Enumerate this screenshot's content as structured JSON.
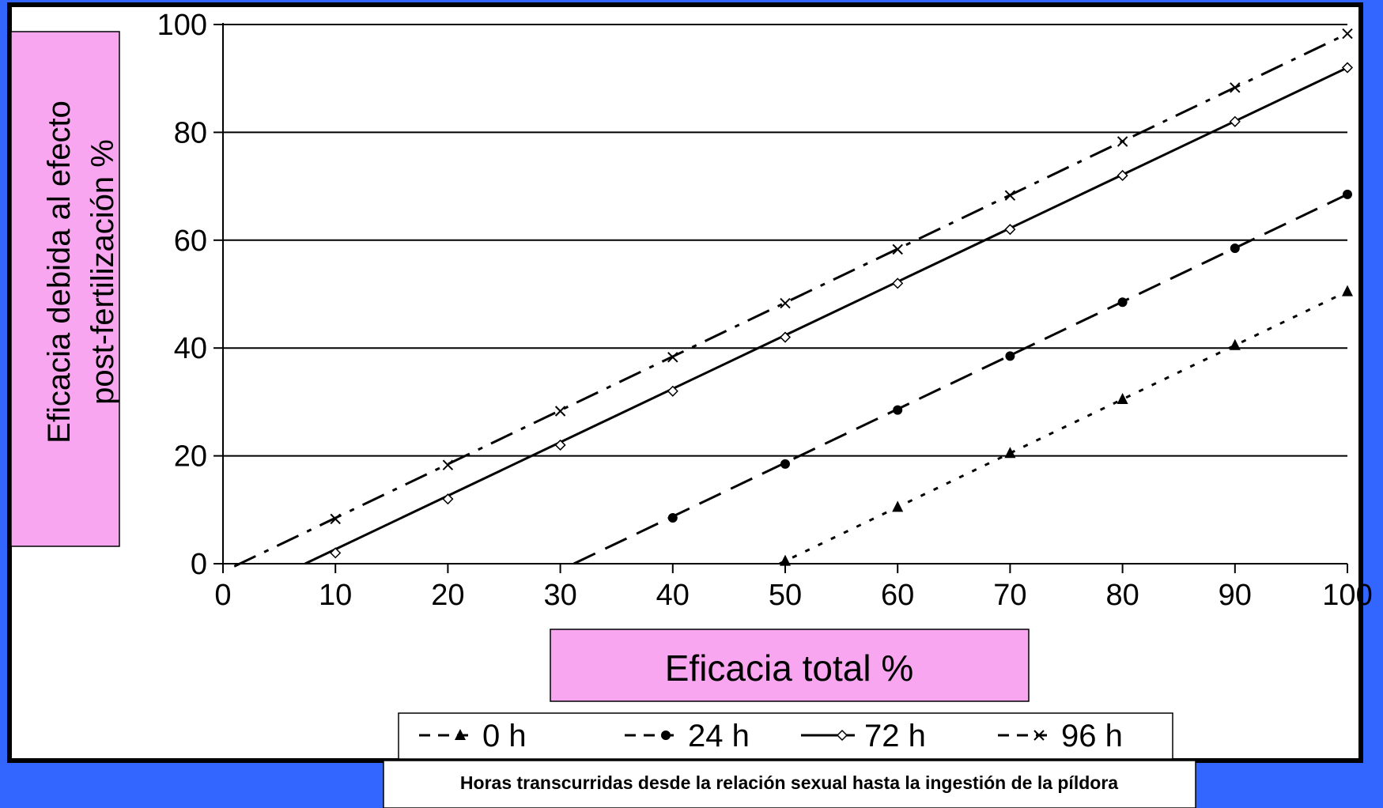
{
  "chart_data": {
    "type": "line",
    "title": "",
    "xlabel": "Eficacia total %",
    "ylabel_line1": "Eficacia debida al efecto",
    "ylabel_line2": "post-fertilización %",
    "xlim": [
      0,
      100
    ],
    "ylim": [
      0,
      100
    ],
    "x_ticks": [
      0,
      10,
      20,
      30,
      40,
      50,
      60,
      70,
      80,
      90,
      100
    ],
    "y_ticks": [
      0,
      20,
      40,
      60,
      80,
      100
    ],
    "grid": "horizontal",
    "legend_position": "bottom",
    "note": "Horas transcurridas desde la relación sexual hasta la ingestión de la píldora",
    "series": [
      {
        "name": "0 h",
        "marker": "triangle",
        "dash": "dotted",
        "x": [
          50,
          60,
          70,
          80,
          90,
          100
        ],
        "y": [
          0.5,
          10.5,
          20.5,
          30.5,
          40.5,
          50.5
        ],
        "line_x": [
          49.5,
          100
        ],
        "line_y": [
          0,
          50.5
        ]
      },
      {
        "name": "24 h",
        "marker": "circle",
        "dash": "dashed",
        "x": [
          40,
          50,
          60,
          70,
          80,
          90,
          100
        ],
        "y": [
          8.5,
          18.5,
          28.5,
          38.5,
          48.5,
          58.5,
          68.5
        ],
        "line_x": [
          31.2,
          100
        ],
        "line_y": [
          0,
          68.5
        ]
      },
      {
        "name": "72 h",
        "marker": "diamond",
        "dash": "solid",
        "x": [
          10,
          20,
          30,
          40,
          50,
          60,
          70,
          80,
          90,
          100
        ],
        "y": [
          2,
          12,
          22,
          32,
          42,
          52,
          62,
          72,
          82,
          92
        ],
        "line_x": [
          7.3,
          100
        ],
        "line_y": [
          0,
          92
        ]
      },
      {
        "name": "96 h",
        "marker": "x",
        "dash": "dashdot",
        "x": [
          10,
          20,
          30,
          40,
          50,
          60,
          70,
          80,
          90,
          100
        ],
        "y": [
          8.3,
          18.3,
          28.3,
          38.3,
          48.3,
          58.3,
          68.3,
          78.3,
          88.3,
          98.3
        ],
        "line_x": [
          1,
          100
        ],
        "line_y": [
          -0.5,
          98.3
        ]
      }
    ]
  },
  "colors": {
    "page_background": "#3366ff",
    "plot_background": "#ffffff",
    "label_box": "#f7a6ef",
    "line": "#000000"
  }
}
